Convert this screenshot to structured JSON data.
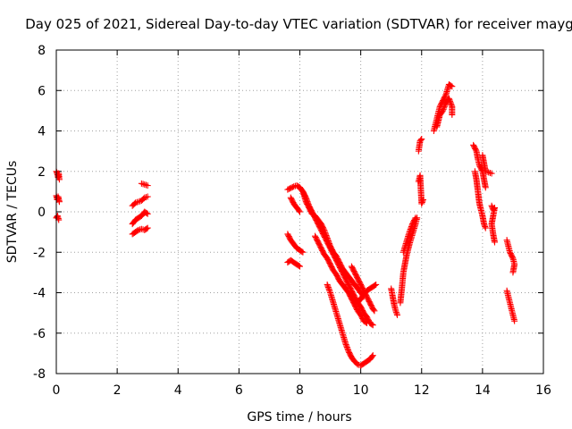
{
  "chart_data": {
    "type": "scatter",
    "title": "Day 025 of 2021, Sidereal Day-to-day VTEC variation (SDTVAR) for receiver mayg",
    "xlabel": "GPS time / hours",
    "ylabel": "SDTVAR / TECUs",
    "xlim": [
      0,
      16
    ],
    "ylim": [
      -8,
      8
    ],
    "x_ticks": [
      "0",
      "2",
      "4",
      "6",
      "8",
      "10",
      "12",
      "14",
      "16"
    ],
    "y_ticks": [
      "8",
      "6",
      "4",
      "2",
      "0",
      "-2",
      "-4",
      "-6",
      "-8"
    ],
    "grid": true,
    "legend": "none",
    "marker": "plus",
    "color": "#ff0000",
    "series": [
      {
        "segments": [
          [
            [
              0.0,
              2.0
            ],
            [
              0.03,
              1.9
            ],
            [
              0.06,
              1.7
            ],
            [
              0.08,
              1.9
            ],
            [
              0.1,
              1.6
            ]
          ],
          [
            [
              0.0,
              0.8
            ],
            [
              0.03,
              0.6
            ],
            [
              0.06,
              0.75
            ],
            [
              0.1,
              0.5
            ]
          ],
          [
            [
              0.0,
              -0.3
            ],
            [
              0.04,
              -0.2
            ],
            [
              0.08,
              -0.4
            ]
          ],
          [
            [
              2.5,
              -1.1
            ],
            [
              2.6,
              -1.0
            ],
            [
              2.7,
              -0.9
            ],
            [
              2.8,
              -0.85
            ],
            [
              2.9,
              -0.9
            ],
            [
              3.0,
              -0.8
            ]
          ],
          [
            [
              2.5,
              -0.6
            ],
            [
              2.6,
              -0.4
            ],
            [
              2.7,
              -0.3
            ],
            [
              2.8,
              -0.2
            ],
            [
              2.9,
              0.0
            ],
            [
              3.0,
              -0.1
            ]
          ],
          [
            [
              2.5,
              0.3
            ],
            [
              2.6,
              0.45
            ],
            [
              2.7,
              0.5
            ],
            [
              2.8,
              0.55
            ],
            [
              2.9,
              0.7
            ],
            [
              3.0,
              0.75
            ]
          ],
          [
            [
              2.8,
              1.4
            ],
            [
              2.9,
              1.35
            ],
            [
              3.0,
              1.3
            ]
          ],
          [
            [
              7.6,
              1.1
            ],
            [
              7.8,
              1.25
            ],
            [
              7.9,
              1.3
            ],
            [
              8.0,
              1.2
            ],
            [
              8.1,
              1.0
            ],
            [
              8.2,
              0.7
            ],
            [
              8.3,
              0.3
            ],
            [
              8.4,
              0.0
            ],
            [
              8.5,
              -0.3
            ],
            [
              8.6,
              -0.6
            ],
            [
              8.7,
              -0.9
            ],
            [
              8.8,
              -1.2
            ],
            [
              8.9,
              -1.5
            ],
            [
              9.0,
              -1.8
            ],
            [
              9.1,
              -2.1
            ],
            [
              9.2,
              -2.4
            ],
            [
              9.3,
              -2.7
            ],
            [
              9.4,
              -3.0
            ],
            [
              9.5,
              -3.3
            ],
            [
              9.6,
              -3.6
            ],
            [
              9.7,
              -3.9
            ],
            [
              9.8,
              -4.2
            ],
            [
              9.9,
              -4.5
            ],
            [
              10.0,
              -4.7
            ],
            [
              10.1,
              -5.0
            ],
            [
              10.2,
              -5.2
            ],
            [
              10.3,
              -5.5
            ],
            [
              10.4,
              -5.6
            ]
          ],
          [
            [
              7.7,
              0.7
            ],
            [
              7.8,
              0.4
            ],
            [
              7.9,
              0.2
            ],
            [
              8.0,
              0.0
            ]
          ],
          [
            [
              7.6,
              -1.1
            ],
            [
              7.7,
              -1.4
            ],
            [
              7.8,
              -1.6
            ],
            [
              7.9,
              -1.8
            ],
            [
              8.0,
              -1.9
            ],
            [
              8.1,
              -2.0
            ]
          ],
          [
            [
              7.6,
              -2.5
            ],
            [
              7.7,
              -2.4
            ],
            [
              7.8,
              -2.5
            ],
            [
              7.9,
              -2.6
            ],
            [
              8.0,
              -2.7
            ]
          ],
          [
            [
              8.5,
              -1.2
            ],
            [
              8.6,
              -1.5
            ],
            [
              8.7,
              -1.8
            ],
            [
              8.8,
              -2.1
            ],
            [
              8.9,
              -2.3
            ],
            [
              9.0,
              -2.6
            ],
            [
              9.1,
              -2.9
            ],
            [
              9.2,
              -3.1
            ],
            [
              9.3,
              -3.4
            ],
            [
              9.4,
              -3.6
            ],
            [
              9.5,
              -3.8
            ],
            [
              9.6,
              -4.0
            ],
            [
              9.7,
              -4.3
            ],
            [
              9.8,
              -4.6
            ],
            [
              9.9,
              -4.9
            ],
            [
              10.0,
              -5.1
            ],
            [
              10.1,
              -5.4
            ],
            [
              10.2,
              -5.5
            ]
          ],
          [
            [
              8.0,
              1.2
            ],
            [
              8.1,
              1.0
            ],
            [
              8.2,
              0.5
            ],
            [
              8.3,
              0.2
            ],
            [
              8.4,
              -0.1
            ],
            [
              8.5,
              -0.2
            ],
            [
              8.6,
              -0.4
            ],
            [
              8.7,
              -0.6
            ],
            [
              8.8,
              -0.9
            ],
            [
              8.9,
              -1.3
            ],
            [
              9.0,
              -1.7
            ],
            [
              9.1,
              -2.0
            ],
            [
              9.2,
              -2.2
            ],
            [
              9.3,
              -2.5
            ],
            [
              9.4,
              -2.8
            ],
            [
              9.5,
              -3.0
            ],
            [
              9.6,
              -3.2
            ],
            [
              9.7,
              -3.4
            ],
            [
              9.8,
              -3.6
            ],
            [
              9.9,
              -3.8
            ],
            [
              10.0,
              -4.0
            ],
            [
              10.1,
              -4.2
            ]
          ],
          [
            [
              9.7,
              -2.7
            ],
            [
              9.8,
              -3.0
            ],
            [
              9.9,
              -3.3
            ],
            [
              10.0,
              -3.6
            ],
            [
              10.1,
              -3.9
            ],
            [
              10.2,
              -4.2
            ],
            [
              10.3,
              -4.5
            ],
            [
              10.4,
              -4.8
            ],
            [
              10.45,
              -4.9
            ]
          ],
          [
            [
              9.9,
              -4.5
            ],
            [
              10.0,
              -4.3
            ],
            [
              10.1,
              -4.1
            ],
            [
              10.2,
              -3.9
            ],
            [
              10.3,
              -3.8
            ],
            [
              10.4,
              -3.7
            ],
            [
              10.5,
              -3.6
            ]
          ],
          [
            [
              8.9,
              -3.6
            ],
            [
              9.0,
              -4.0
            ],
            [
              9.1,
              -4.5
            ],
            [
              9.2,
              -5.0
            ],
            [
              9.3,
              -5.5
            ],
            [
              9.4,
              -6.0
            ],
            [
              9.5,
              -6.5
            ],
            [
              9.6,
              -6.9
            ],
            [
              9.7,
              -7.2
            ],
            [
              9.8,
              -7.4
            ],
            [
              9.9,
              -7.55
            ],
            [
              10.0,
              -7.6
            ],
            [
              10.1,
              -7.5
            ],
            [
              10.2,
              -7.4
            ],
            [
              10.3,
              -7.3
            ],
            [
              10.4,
              -7.1
            ]
          ],
          [
            [
              11.0,
              -3.8
            ],
            [
              11.05,
              -4.2
            ],
            [
              11.1,
              -4.6
            ],
            [
              11.15,
              -4.9
            ],
            [
              11.2,
              -5.1
            ]
          ],
          [
            [
              11.3,
              -4.5
            ],
            [
              11.35,
              -3.8
            ],
            [
              11.4,
              -3.0
            ],
            [
              11.5,
              -2.2
            ],
            [
              11.6,
              -1.6
            ],
            [
              11.7,
              -1.1
            ],
            [
              11.8,
              -0.6
            ],
            [
              11.85,
              -0.3
            ]
          ],
          [
            [
              11.4,
              -2.0
            ],
            [
              11.5,
              -1.5
            ],
            [
              11.6,
              -1.0
            ],
            [
              11.7,
              -0.6
            ],
            [
              11.8,
              -0.3
            ]
          ],
          [
            [
              11.9,
              1.5
            ],
            [
              11.95,
              1.8
            ],
            [
              12.0,
              0.4
            ],
            [
              12.05,
              0.6
            ]
          ],
          [
            [
              11.9,
              3.0
            ],
            [
              11.95,
              3.5
            ],
            [
              12.0,
              3.6
            ]
          ],
          [
            [
              12.4,
              4.0
            ],
            [
              12.45,
              4.3
            ],
            [
              12.5,
              4.6
            ],
            [
              12.55,
              4.9
            ],
            [
              12.6,
              5.2
            ],
            [
              12.7,
              5.5
            ],
            [
              12.8,
              5.8
            ],
            [
              12.9,
              6.3
            ],
            [
              13.0,
              6.2
            ]
          ],
          [
            [
              12.5,
              4.2
            ],
            [
              12.6,
              4.8
            ],
            [
              12.7,
              5.0
            ],
            [
              12.8,
              5.4
            ],
            [
              12.9,
              5.6
            ],
            [
              13.0,
              5.2
            ],
            [
              13.0,
              4.8
            ]
          ],
          [
            [
              13.7,
              3.3
            ],
            [
              13.8,
              3.0
            ],
            [
              13.85,
              2.6
            ],
            [
              13.9,
              2.3
            ],
            [
              14.0,
              2.0
            ],
            [
              14.05,
              1.6
            ],
            [
              14.1,
              1.2
            ]
          ],
          [
            [
              13.75,
              2.0
            ],
            [
              13.8,
              1.6
            ],
            [
              13.85,
              1.0
            ],
            [
              13.9,
              0.4
            ],
            [
              14.0,
              -0.2
            ],
            [
              14.05,
              -0.6
            ],
            [
              14.1,
              -0.8
            ]
          ],
          [
            [
              14.0,
              2.8
            ],
            [
              14.05,
              2.4
            ],
            [
              14.1,
              2.0
            ],
            [
              14.3,
              1.9
            ]
          ],
          [
            [
              14.3,
              0.3
            ],
            [
              14.35,
              0.1
            ],
            [
              14.4,
              0.2
            ],
            [
              14.3,
              -0.6
            ],
            [
              14.35,
              -1.1
            ],
            [
              14.4,
              -1.5
            ]
          ],
          [
            [
              14.8,
              -1.4
            ],
            [
              14.85,
              -1.7
            ],
            [
              14.9,
              -2.0
            ],
            [
              15.0,
              -2.3
            ],
            [
              15.05,
              -2.6
            ],
            [
              15.0,
              -3.0
            ]
          ],
          [
            [
              14.8,
              -3.9
            ],
            [
              14.85,
              -4.2
            ],
            [
              14.9,
              -4.5
            ],
            [
              14.95,
              -4.8
            ],
            [
              15.0,
              -5.1
            ],
            [
              15.05,
              -5.4
            ]
          ]
        ]
      }
    ]
  }
}
